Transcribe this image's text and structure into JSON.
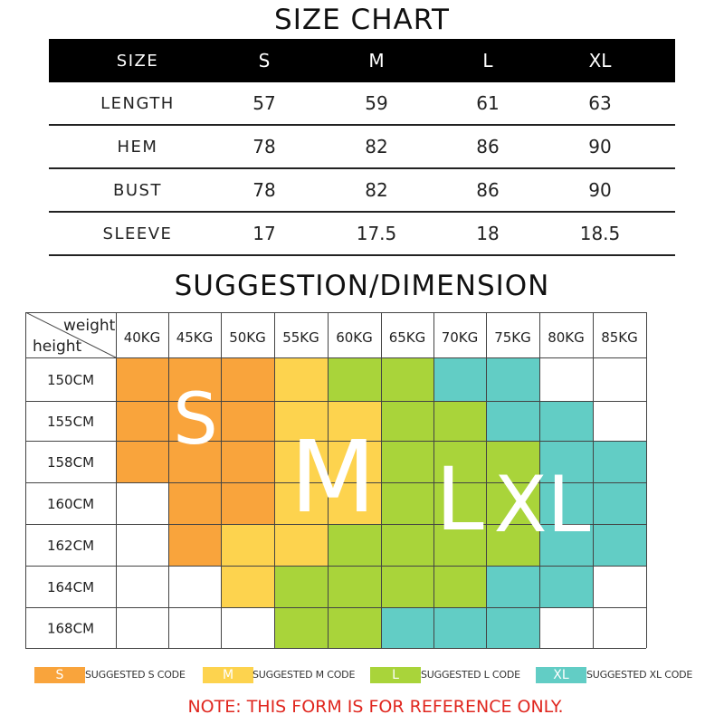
{
  "size_chart": {
    "title": "SIZE CHART",
    "header": {
      "label": "SIZE",
      "sizes": [
        "S",
        "M",
        "L",
        "XL"
      ]
    },
    "rows": [
      {
        "label": "LENGTH",
        "values": [
          "57",
          "59",
          "61",
          "63"
        ]
      },
      {
        "label": "HEM",
        "values": [
          "78",
          "82",
          "86",
          "90"
        ]
      },
      {
        "label": "BUST",
        "values": [
          "78",
          "82",
          "86",
          "90"
        ]
      },
      {
        "label": "SLEEVE",
        "values": [
          "17",
          "17.5",
          "18",
          "18.5"
        ]
      }
    ]
  },
  "suggestion": {
    "title": "SUGGESTION/DIMENSION",
    "corner": {
      "top": "weight",
      "bottom": "height"
    },
    "weights": [
      "40KG",
      "45KG",
      "50KG",
      "55KG",
      "60KG",
      "65KG",
      "70KG",
      "75KG",
      "80KG",
      "85KG"
    ],
    "heights": [
      "150CM",
      "155CM",
      "158CM",
      "160CM",
      "162CM",
      "164CM",
      "168CM"
    ],
    "grid": [
      [
        "S",
        "S",
        "S",
        "M",
        "L",
        "L",
        "XL",
        "XL",
        "",
        ""
      ],
      [
        "S",
        "S",
        "S",
        "M",
        "M",
        "L",
        "L",
        "XL",
        "XL",
        ""
      ],
      [
        "S",
        "S",
        "S",
        "M",
        "M",
        "L",
        "L",
        "L",
        "XL",
        "XL"
      ],
      [
        "",
        "S",
        "S",
        "M",
        "M",
        "L",
        "L",
        "L",
        "XL",
        "XL"
      ],
      [
        "",
        "S",
        "M",
        "M",
        "L",
        "L",
        "L",
        "L",
        "XL",
        "XL"
      ],
      [
        "",
        "",
        "M",
        "L",
        "L",
        "L",
        "L",
        "XL",
        "XL",
        ""
      ],
      [
        "",
        "",
        "",
        "L",
        "L",
        "XL",
        "XL",
        "XL",
        "",
        ""
      ]
    ],
    "big_letters": [
      "S",
      "M",
      "L",
      "XL"
    ],
    "colors": {
      "S": "#f9a43c",
      "M": "#fdd34e",
      "L": "#a9d43a",
      "XL": "#62cdc5",
      "empty": "#ffffff",
      "border": "#444444"
    }
  },
  "legend": [
    {
      "code": "S",
      "text": "SUGGESTED S CODE",
      "color": "#f9a43c"
    },
    {
      "code": "M",
      "text": "SUGGESTED M CODE",
      "color": "#fdd34e"
    },
    {
      "code": "L",
      "text": "SUGGESTED L CODE",
      "color": "#a9d43a"
    },
    {
      "code": "XL",
      "text": "SUGGESTED XL CODE",
      "color": "#62cdc5"
    }
  ],
  "note": "NOTE: THIS FORM IS FOR REFERENCE ONLY."
}
